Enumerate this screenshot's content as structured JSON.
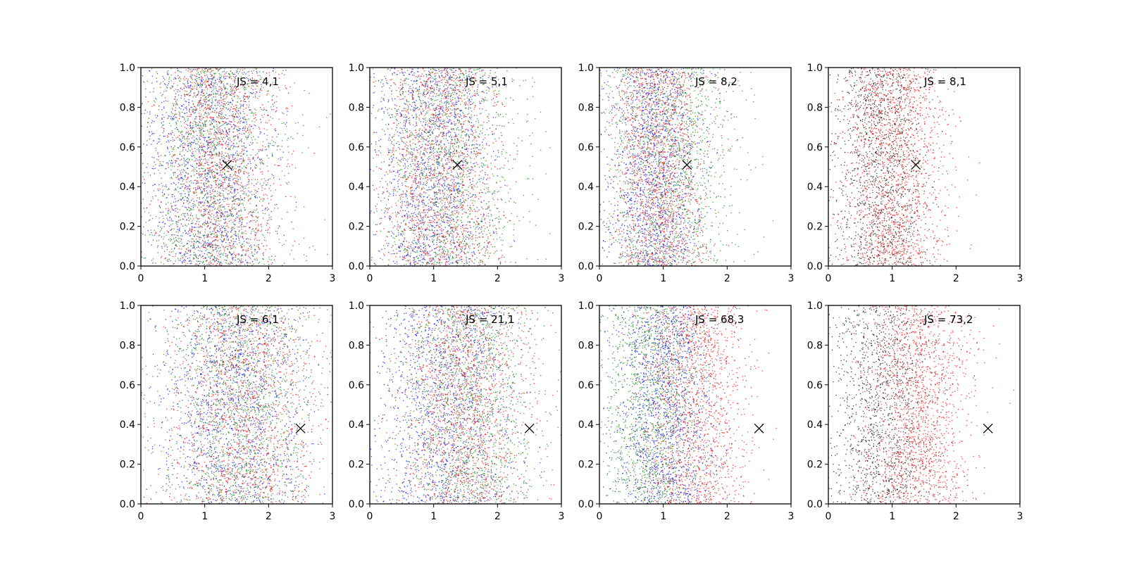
{
  "figure": {
    "grid": false,
    "layout": "2 rows x 4 columns"
  },
  "chart_data": [
    {
      "type": "scatter",
      "annotation": "JS = 4,1",
      "xlim": [
        0,
        3
      ],
      "ylim": [
        0,
        1
      ],
      "xticks": [
        "0",
        "1",
        "2",
        "3"
      ],
      "yticks": [
        "0.0",
        "0.2",
        "0.4",
        "0.6",
        "0.8",
        "1.0"
      ],
      "marker": {
        "x": 1.35,
        "y": 0.51,
        "symbol": "x",
        "color": "#000000"
      },
      "series": [
        {
          "color": "#0000ff",
          "x_mean": 1.05,
          "x_sd": 0.5,
          "count": 1400
        },
        {
          "color": "#008000",
          "x_mean": 1.15,
          "x_sd": 0.5,
          "count": 1400
        },
        {
          "color": "#ff0000",
          "x_mean": 1.25,
          "x_sd": 0.5,
          "count": 1400
        }
      ]
    },
    {
      "type": "scatter",
      "annotation": "JS = 5,1",
      "xlim": [
        0,
        3
      ],
      "ylim": [
        0,
        1
      ],
      "xticks": [
        "0",
        "1",
        "2",
        "3"
      ],
      "yticks": [
        "0.0",
        "0.2",
        "0.4",
        "0.6",
        "0.8",
        "1.0"
      ],
      "marker": {
        "x": 1.37,
        "y": 0.51,
        "symbol": "x",
        "color": "#000000"
      },
      "series": [
        {
          "color": "#0000ff",
          "x_mean": 1.0,
          "x_sd": 0.48,
          "count": 1400
        },
        {
          "color": "#008000",
          "x_mean": 1.15,
          "x_sd": 0.55,
          "count": 1400
        },
        {
          "color": "#ff0000",
          "x_mean": 1.1,
          "x_sd": 0.45,
          "count": 1400
        }
      ]
    },
    {
      "type": "scatter",
      "annotation": "JS = 8,2",
      "xlim": [
        0,
        3
      ],
      "ylim": [
        0,
        1
      ],
      "xticks": [
        "0",
        "1",
        "2",
        "3"
      ],
      "yticks": [
        "0.0",
        "0.2",
        "0.4",
        "0.6",
        "0.8",
        "1.0"
      ],
      "marker": {
        "x": 1.37,
        "y": 0.51,
        "symbol": "x",
        "color": "#000000"
      },
      "series": [
        {
          "color": "#0000ff",
          "x_mean": 0.85,
          "x_sd": 0.38,
          "count": 1400
        },
        {
          "color": "#008000",
          "x_mean": 1.1,
          "x_sd": 0.5,
          "count": 1400
        },
        {
          "color": "#ff0000",
          "x_mean": 0.95,
          "x_sd": 0.38,
          "count": 1400
        }
      ]
    },
    {
      "type": "scatter",
      "annotation": "JS = 8,1",
      "xlim": [
        0,
        3
      ],
      "ylim": [
        0,
        1
      ],
      "xticks": [
        "0",
        "1",
        "2",
        "3"
      ],
      "yticks": [
        "0.0",
        "0.2",
        "0.4",
        "0.6",
        "0.8",
        "1.0"
      ],
      "marker": {
        "x": 1.37,
        "y": 0.51,
        "symbol": "x",
        "color": "#000000"
      },
      "series": [
        {
          "color": "#000000",
          "x_mean": 0.8,
          "x_sd": 0.38,
          "count": 1300
        },
        {
          "color": "#ff0000",
          "x_mean": 1.0,
          "x_sd": 0.42,
          "count": 1600
        }
      ]
    },
    {
      "type": "scatter",
      "annotation": "JS = 6,1",
      "xlim": [
        0,
        3
      ],
      "ylim": [
        0,
        1
      ],
      "xticks": [
        "0",
        "1",
        "2",
        "3"
      ],
      "yticks": [
        "0.0",
        "0.2",
        "0.4",
        "0.6",
        "0.8",
        "1.0"
      ],
      "marker": {
        "x": 2.5,
        "y": 0.38,
        "symbol": "x",
        "color": "#000000"
      },
      "series": [
        {
          "color": "#0000ff",
          "x_mean": 1.45,
          "x_sd": 0.6,
          "count": 1400
        },
        {
          "color": "#008000",
          "x_mean": 1.55,
          "x_sd": 0.6,
          "count": 1400
        },
        {
          "color": "#ff0000",
          "x_mean": 1.6,
          "x_sd": 0.6,
          "count": 1400
        }
      ]
    },
    {
      "type": "scatter",
      "annotation": "JS = 21,1",
      "xlim": [
        0,
        3
      ],
      "ylim": [
        0,
        1
      ],
      "xticks": [
        "0",
        "1",
        "2",
        "3"
      ],
      "yticks": [
        "0.0",
        "0.2",
        "0.4",
        "0.6",
        "0.8",
        "1.0"
      ],
      "marker": {
        "x": 2.5,
        "y": 0.38,
        "symbol": "x",
        "color": "#000000"
      },
      "series": [
        {
          "color": "#0000ff",
          "x_mean": 1.2,
          "x_sd": 0.55,
          "count": 1400
        },
        {
          "color": "#008000",
          "x_mean": 1.5,
          "x_sd": 0.55,
          "count": 1400
        },
        {
          "color": "#ff0000",
          "x_mean": 1.5,
          "x_sd": 0.5,
          "count": 1400
        }
      ]
    },
    {
      "type": "scatter",
      "annotation": "JS = 68,3",
      "xlim": [
        0,
        3
      ],
      "ylim": [
        0,
        1
      ],
      "xticks": [
        "0",
        "1",
        "2",
        "3"
      ],
      "yticks": [
        "0.0",
        "0.2",
        "0.4",
        "0.6",
        "0.8",
        "1.0"
      ],
      "marker": {
        "x": 2.5,
        "y": 0.38,
        "symbol": "x",
        "color": "#000000"
      },
      "series": [
        {
          "color": "#008000",
          "x_mean": 0.8,
          "x_sd": 0.4,
          "count": 1400
        },
        {
          "color": "#0000ff",
          "x_mean": 1.05,
          "x_sd": 0.4,
          "count": 1400
        },
        {
          "color": "#ff0000",
          "x_mean": 1.5,
          "x_sd": 0.42,
          "count": 1400
        }
      ]
    },
    {
      "type": "scatter",
      "annotation": "JS = 73,2",
      "xlim": [
        0,
        3
      ],
      "ylim": [
        0,
        1
      ],
      "xticks": [
        "0",
        "1",
        "2",
        "3"
      ],
      "yticks": [
        "0.0",
        "0.2",
        "0.4",
        "0.6",
        "0.8",
        "1.0"
      ],
      "marker": {
        "x": 2.5,
        "y": 0.38,
        "symbol": "x",
        "color": "#000000"
      },
      "series": [
        {
          "color": "#000000",
          "x_mean": 0.85,
          "x_sd": 0.42,
          "count": 1300
        },
        {
          "color": "#ff0000",
          "x_mean": 1.4,
          "x_sd": 0.45,
          "count": 1600
        }
      ]
    }
  ]
}
